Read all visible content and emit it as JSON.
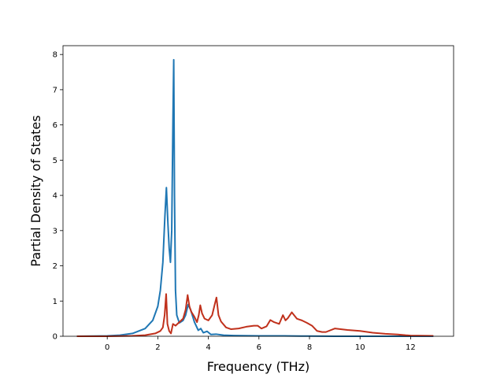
{
  "chart_data": {
    "type": "line",
    "title": "",
    "xlabel": "Frequency (THz)",
    "ylabel": "Partial Density of States",
    "xlim": [
      -1.75,
      13.7
    ],
    "ylim": [
      0,
      8.25
    ],
    "xticks": [
      0,
      2,
      4,
      6,
      8,
      10,
      12
    ],
    "yticks": [
      0,
      1,
      2,
      3,
      4,
      5,
      6,
      7,
      8
    ],
    "grid": false,
    "legend": "none",
    "series": [
      {
        "color": "#1f77b4",
        "x": [
          -1.2,
          0.0,
          0.5,
          1.0,
          1.5,
          1.8,
          2.0,
          2.1,
          2.2,
          2.28,
          2.34,
          2.4,
          2.45,
          2.5,
          2.55,
          2.6,
          2.63,
          2.66,
          2.7,
          2.75,
          2.85,
          3.0,
          3.1,
          3.2,
          3.3,
          3.45,
          3.6,
          3.7,
          3.8,
          3.95,
          4.1,
          4.3,
          4.6,
          5.0,
          6.0,
          7.0,
          8.0,
          9.0,
          10.0,
          11.0,
          12.0,
          12.9
        ],
        "y": [
          0.0,
          0.01,
          0.03,
          0.08,
          0.22,
          0.45,
          0.85,
          1.3,
          2.1,
          3.4,
          4.22,
          3.2,
          2.5,
          2.1,
          3.0,
          6.2,
          7.85,
          4.0,
          1.3,
          0.6,
          0.38,
          0.45,
          0.6,
          0.9,
          0.75,
          0.4,
          0.17,
          0.22,
          0.1,
          0.14,
          0.05,
          0.06,
          0.03,
          0.02,
          0.01,
          0.01,
          0.005,
          0.0,
          0.0,
          0.0,
          0.0,
          0.0
        ]
      },
      {
        "color": "#c0311c",
        "x": [
          -1.2,
          0.0,
          1.0,
          1.5,
          1.9,
          2.1,
          2.2,
          2.27,
          2.33,
          2.38,
          2.45,
          2.52,
          2.6,
          2.7,
          2.85,
          3.0,
          3.1,
          3.18,
          3.25,
          3.32,
          3.45,
          3.55,
          3.62,
          3.68,
          3.75,
          3.85,
          4.0,
          4.15,
          4.25,
          4.32,
          4.4,
          4.5,
          4.7,
          4.9,
          5.2,
          5.5,
          5.8,
          5.95,
          6.1,
          6.3,
          6.45,
          6.6,
          6.8,
          6.95,
          7.05,
          7.15,
          7.3,
          7.5,
          7.7,
          7.9,
          8.1,
          8.3,
          8.5,
          8.65,
          9.0,
          9.5,
          10.0,
          10.5,
          11.0,
          11.5,
          11.8,
          12.0,
          12.9
        ],
        "y": [
          0.0,
          0.0,
          0.01,
          0.03,
          0.08,
          0.15,
          0.25,
          0.6,
          1.2,
          0.35,
          0.15,
          0.08,
          0.35,
          0.3,
          0.4,
          0.5,
          0.75,
          1.17,
          0.85,
          0.7,
          0.55,
          0.4,
          0.6,
          0.88,
          0.65,
          0.5,
          0.45,
          0.6,
          0.9,
          1.1,
          0.6,
          0.42,
          0.25,
          0.2,
          0.22,
          0.27,
          0.3,
          0.3,
          0.22,
          0.28,
          0.46,
          0.4,
          0.35,
          0.6,
          0.45,
          0.52,
          0.68,
          0.5,
          0.45,
          0.38,
          0.3,
          0.15,
          0.12,
          0.12,
          0.22,
          0.18,
          0.15,
          0.1,
          0.07,
          0.05,
          0.03,
          0.02,
          0.01
        ]
      }
    ]
  }
}
